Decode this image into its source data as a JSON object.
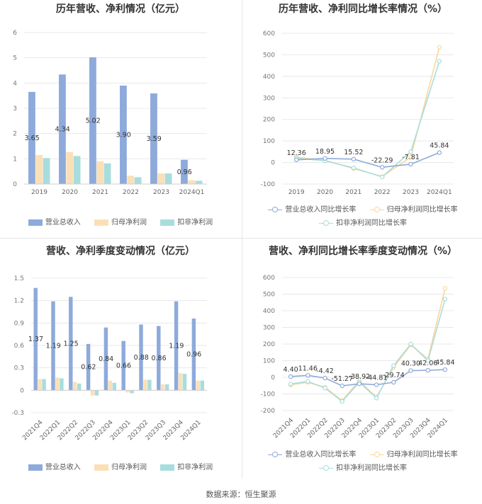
{
  "source": "数据来源：恒生聚源",
  "colors": {
    "revenue": "#8eaadb",
    "net_profit": "#fbe0b7",
    "deducted": "#a8dddd",
    "rev_line": "#8eaadb",
    "np_line": "#fbd79b",
    "ded_line": "#a8dddd"
  },
  "chart_data": [
    {
      "type": "bar",
      "title": "历年营收、净利情况（亿元）",
      "categories": [
        "2019",
        "2020",
        "2021",
        "2022",
        "2023",
        "2024Q1"
      ],
      "ylim": [
        0,
        6
      ],
      "yticks": [
        0,
        1,
        2,
        3,
        4,
        5,
        6
      ],
      "series": [
        {
          "name": "营业总收入",
          "values": [
            3.65,
            4.34,
            5.02,
            3.9,
            3.59,
            0.96
          ]
        },
        {
          "name": "归母净利润",
          "values": [
            1.15,
            1.27,
            0.9,
            0.33,
            0.42,
            0.15
          ]
        },
        {
          "name": "扣非净利润",
          "values": [
            1.03,
            1.11,
            0.82,
            0.27,
            0.42,
            0.13
          ]
        }
      ],
      "data_labels": [
        "3.65",
        "4.34",
        "5.02",
        "3.90",
        "3.59",
        "0.96"
      ],
      "legend": "bottom"
    },
    {
      "type": "line",
      "title": "历年营收、净利同比增长率情况（%）",
      "categories": [
        "2019",
        "2020",
        "2021",
        "2022",
        "2023",
        "2024Q1"
      ],
      "ylim": [
        -100,
        600
      ],
      "yticks": [
        -100,
        0,
        100,
        200,
        300,
        400,
        500,
        600
      ],
      "series": [
        {
          "name": "营业总收入同比增长率",
          "values": [
            12.36,
            18.95,
            15.52,
            -22.29,
            -7.81,
            45.84
          ]
        },
        {
          "name": "归母净利润同比增长率",
          "values": [
            25,
            10,
            -28,
            -65,
            25,
            535
          ]
        },
        {
          "name": "扣非净利润同比增长率",
          "values": [
            20,
            8,
            -25,
            -67,
            50,
            470
          ]
        }
      ],
      "data_labels": [
        "12.36",
        "18.95",
        "15.52",
        "-22.29",
        "-7.81",
        "45.84"
      ],
      "legend": "bottom"
    },
    {
      "type": "bar",
      "title": "营收、净利季度变动情况（亿元）",
      "categories": [
        "2021Q4",
        "2022Q1",
        "2022Q2",
        "2022Q3",
        "2022Q4",
        "2023Q1",
        "2023Q2",
        "2023Q3",
        "2023Q4",
        "2024Q1"
      ],
      "ylim": [
        -0.3,
        1.5
      ],
      "yticks": [
        -0.3,
        0,
        0.3,
        0.6,
        0.9,
        1.2,
        1.5
      ],
      "series": [
        {
          "name": "营业总收入",
          "values": [
            1.37,
            1.19,
            1.25,
            0.62,
            0.84,
            0.66,
            0.88,
            0.86,
            1.19,
            0.96
          ]
        },
        {
          "name": "归母净利润",
          "values": [
            0.15,
            0.17,
            0.11,
            -0.07,
            0.13,
            -0.03,
            0.14,
            0.08,
            0.23,
            0.13
          ]
        },
        {
          "name": "扣非净利润",
          "values": [
            0.15,
            0.16,
            0.09,
            -0.07,
            0.1,
            -0.04,
            0.14,
            0.08,
            0.22,
            0.13
          ]
        }
      ],
      "data_labels": [
        "1.37",
        "1.19",
        "1.25",
        "0.62",
        "0.84",
        "0.66",
        "0.88",
        "0.86",
        "1.19",
        "0.96"
      ],
      "legend": "bottom"
    },
    {
      "type": "line",
      "title": "营收、净利同比增长率季度变动情况（%）",
      "categories": [
        "2021Q4",
        "2022Q1",
        "2022Q2",
        "2022Q3",
        "2022Q4",
        "2023Q1",
        "2023Q2",
        "2023Q3",
        "2023Q4",
        "2024Q1"
      ],
      "ylim": [
        -200,
        600
      ],
      "yticks": [
        -200,
        -100,
        0,
        100,
        200,
        300,
        400,
        500,
        600
      ],
      "series": [
        {
          "name": "营业总收入同比增长率",
          "values": [
            4.4,
            11.46,
            -4.42,
            -51.27,
            -38.92,
            -44.81,
            -29.74,
            40.3,
            42.06,
            45.84
          ]
        },
        {
          "name": "归母净利润同比增长率",
          "values": [
            -45,
            -30,
            -60,
            -140,
            -20,
            -120,
            60,
            195,
            110,
            535
          ]
        },
        {
          "name": "扣非净利润同比增长率",
          "values": [
            -40,
            -25,
            -65,
            -145,
            -30,
            -125,
            70,
            200,
            100,
            470
          ]
        }
      ],
      "data_labels": [
        "4.40",
        "11.46",
        "-4.42",
        "-51.27",
        "-38.92",
        "-44.81",
        "-29.74",
        "40.30",
        "42.06",
        "45.84"
      ],
      "legend": "bottom"
    }
  ]
}
